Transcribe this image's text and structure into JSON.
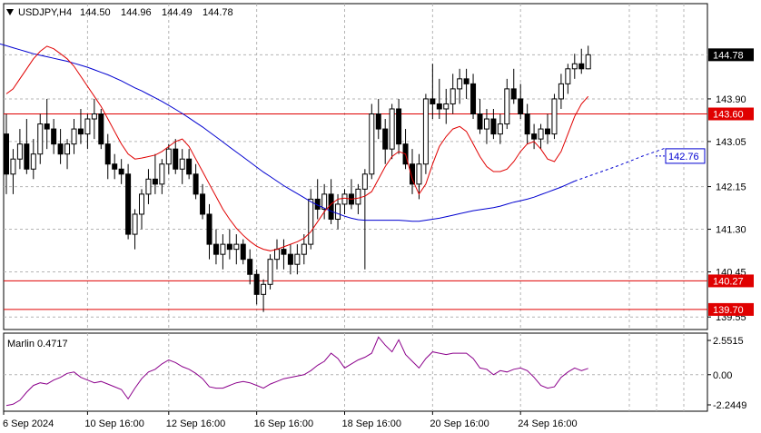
{
  "chart_data": {
    "type": "candlestick",
    "header": {
      "symbol": "USDJPY,H4",
      "open": "144.50",
      "high": "144.96",
      "low": "144.49",
      "close": "144.78"
    },
    "price_axis": {
      "range": [
        139.3,
        145.8
      ],
      "ticks": [
        "143.90",
        "143.05",
        "142.15",
        "141.30",
        "140.45",
        "139.55"
      ]
    },
    "price_labels": [
      {
        "name": "current-price",
        "text": "144.78",
        "value": 144.78,
        "style": "black"
      },
      {
        "name": "level-143-60",
        "text": "143.60",
        "value": 143.6,
        "style": "red"
      },
      {
        "name": "ma-projection",
        "text": "142.76",
        "value": 142.76,
        "style": "blue-outline"
      },
      {
        "name": "level-140-27",
        "text": "140.27",
        "value": 140.27,
        "style": "red"
      },
      {
        "name": "level-139-70",
        "text": "139.70",
        "value": 139.7,
        "style": "red"
      }
    ],
    "horizontal_levels": [
      143.6,
      140.27,
      139.7
    ],
    "x_labels": [
      "6 Sep 2024",
      "10 Sep 16:00",
      "12 Sep 16:00",
      "16 Sep 16:00",
      "18 Sep 16:00",
      "20 Sep 16:00",
      "24 Sep 16:00"
    ],
    "candles": [
      [
        143.2,
        143.6,
        142.0,
        142.4
      ],
      [
        142.4,
        142.9,
        142.0,
        142.7
      ],
      [
        142.7,
        143.3,
        142.5,
        143.0
      ],
      [
        143.0,
        143.5,
        142.4,
        142.5
      ],
      [
        142.5,
        143.1,
        142.3,
        142.8
      ],
      [
        142.8,
        143.6,
        142.6,
        143.4
      ],
      [
        143.4,
        143.9,
        142.9,
        143.3
      ],
      [
        143.3,
        143.5,
        142.8,
        143.0
      ],
      [
        143.0,
        143.3,
        142.6,
        142.8
      ],
      [
        142.8,
        143.1,
        142.5,
        143.0
      ],
      [
        143.0,
        143.5,
        142.8,
        143.3
      ],
      [
        143.3,
        143.7,
        143.0,
        143.2
      ],
      [
        143.2,
        143.6,
        142.9,
        143.5
      ],
      [
        143.5,
        143.9,
        143.1,
        143.6
      ],
      [
        143.6,
        143.7,
        142.9,
        143.0
      ],
      [
        143.0,
        143.2,
        142.3,
        142.6
      ],
      [
        142.6,
        142.8,
        142.3,
        142.5
      ],
      [
        142.5,
        142.7,
        142.2,
        142.4
      ],
      [
        142.4,
        142.6,
        141.1,
        141.2
      ],
      [
        141.2,
        141.7,
        140.9,
        141.6
      ],
      [
        141.6,
        142.1,
        141.3,
        142.0
      ],
      [
        142.0,
        142.5,
        141.8,
        142.3
      ],
      [
        142.3,
        142.8,
        142.0,
        142.2
      ],
      [
        142.2,
        142.7,
        142.0,
        142.6
      ],
      [
        142.6,
        143.0,
        142.4,
        142.9
      ],
      [
        142.9,
        143.1,
        142.4,
        142.5
      ],
      [
        142.5,
        142.9,
        142.2,
        142.7
      ],
      [
        142.7,
        142.9,
        142.3,
        142.4
      ],
      [
        142.4,
        142.6,
        141.9,
        142.0
      ],
      [
        142.0,
        142.2,
        141.5,
        141.6
      ],
      [
        141.6,
        141.8,
        140.7,
        141.0
      ],
      [
        141.0,
        141.3,
        140.6,
        140.8
      ],
      [
        140.8,
        141.2,
        140.5,
        141.0
      ],
      [
        141.0,
        141.3,
        140.7,
        140.9
      ],
      [
        140.9,
        141.2,
        140.6,
        141.0
      ],
      [
        141.0,
        141.1,
        140.6,
        140.7
      ],
      [
        140.7,
        140.9,
        140.2,
        140.4
      ],
      [
        140.4,
        140.5,
        139.8,
        140.0
      ],
      [
        140.0,
        140.3,
        139.65,
        140.2
      ],
      [
        140.2,
        140.8,
        140.1,
        140.7
      ],
      [
        140.7,
        141.1,
        140.5,
        140.9
      ],
      [
        140.9,
        141.1,
        140.5,
        140.8
      ],
      [
        140.8,
        141.0,
        140.4,
        140.6
      ],
      [
        140.6,
        141.0,
        140.4,
        140.8
      ],
      [
        140.8,
        141.2,
        140.6,
        141.0
      ],
      [
        141.0,
        142.1,
        140.9,
        141.9
      ],
      [
        141.9,
        142.3,
        141.5,
        141.7
      ],
      [
        141.7,
        142.2,
        141.5,
        142.0
      ],
      [
        142.0,
        142.3,
        141.4,
        141.5
      ],
      [
        141.5,
        142.0,
        141.3,
        141.8
      ],
      [
        141.8,
        142.1,
        141.6,
        142.0
      ],
      [
        142.0,
        142.3,
        141.7,
        141.8
      ],
      [
        141.8,
        142.2,
        141.6,
        142.1
      ],
      [
        142.1,
        142.5,
        140.5,
        142.4
      ],
      [
        142.4,
        143.8,
        142.3,
        143.6
      ],
      [
        143.6,
        143.9,
        143.1,
        143.3
      ],
      [
        143.3,
        143.5,
        142.6,
        142.9
      ],
      [
        142.9,
        143.8,
        142.7,
        143.7
      ],
      [
        143.7,
        143.9,
        142.8,
        143.0
      ],
      [
        143.0,
        143.3,
        142.5,
        142.6
      ],
      [
        142.6,
        142.9,
        142.0,
        142.2
      ],
      [
        142.2,
        142.8,
        141.9,
        142.6
      ],
      [
        142.6,
        144.0,
        142.4,
        143.9
      ],
      [
        143.9,
        144.6,
        143.5,
        143.8
      ],
      [
        143.8,
        144.3,
        143.5,
        143.7
      ],
      [
        143.7,
        144.1,
        143.4,
        143.8
      ],
      [
        143.8,
        144.4,
        143.6,
        144.1
      ],
      [
        144.1,
        144.5,
        143.8,
        144.3
      ],
      [
        144.3,
        144.5,
        143.9,
        144.2
      ],
      [
        144.2,
        144.4,
        143.5,
        143.6
      ],
      [
        143.6,
        143.9,
        143.2,
        143.3
      ],
      [
        143.3,
        143.7,
        143.0,
        143.5
      ],
      [
        143.5,
        143.7,
        143.1,
        143.2
      ],
      [
        143.2,
        143.6,
        143.0,
        143.4
      ],
      [
        143.4,
        144.3,
        143.3,
        144.1
      ],
      [
        144.1,
        144.5,
        143.8,
        143.9
      ],
      [
        143.9,
        144.2,
        143.5,
        143.6
      ],
      [
        143.6,
        143.8,
        143.0,
        143.2
      ],
      [
        143.2,
        143.4,
        142.9,
        143.1
      ],
      [
        143.1,
        143.4,
        142.9,
        143.3
      ],
      [
        143.3,
        143.6,
        143.0,
        143.2
      ],
      [
        143.2,
        144.0,
        143.1,
        143.9
      ],
      [
        143.9,
        144.4,
        143.7,
        144.2
      ],
      [
        144.2,
        144.6,
        144.0,
        144.5
      ],
      [
        144.5,
        144.8,
        144.3,
        144.6
      ],
      [
        144.6,
        144.9,
        144.4,
        144.5
      ],
      [
        144.5,
        144.96,
        144.49,
        144.78
      ]
    ],
    "blue_ma": [
      145.0,
      144.96,
      144.92,
      144.88,
      144.84,
      144.8,
      144.77,
      144.74,
      144.71,
      144.68,
      144.65,
      144.61,
      144.57,
      144.53,
      144.48,
      144.43,
      144.38,
      144.32,
      144.26,
      144.19,
      144.12,
      144.06,
      143.99,
      143.92,
      143.85,
      143.77,
      143.69,
      143.61,
      143.52,
      143.43,
      143.34,
      143.24,
      143.14,
      143.04,
      142.94,
      142.84,
      142.74,
      142.64,
      142.54,
      142.44,
      142.35,
      142.26,
      142.17,
      142.09,
      142.01,
      141.93,
      141.85,
      141.78,
      141.72,
      141.66,
      141.61,
      141.56,
      141.52,
      141.49,
      141.48,
      141.48,
      141.48,
      141.48,
      141.48,
      141.48,
      141.47,
      141.46,
      141.46,
      141.48,
      141.5,
      141.52,
      141.55,
      141.58,
      141.61,
      141.64,
      141.67,
      141.69,
      141.71,
      141.73,
      141.76,
      141.8,
      141.84,
      141.87,
      141.9,
      141.94,
      141.99,
      142.04,
      142.09,
      142.14,
      142.2,
      142.26
    ],
    "blue_ma_projection": [
      142.26,
      142.42,
      142.58,
      142.76,
      142.92
    ],
    "red_ma": [
      144.0,
      144.1,
      144.3,
      144.5,
      144.7,
      144.85,
      144.95,
      144.9,
      144.8,
      144.7,
      144.55,
      144.35,
      144.15,
      143.95,
      143.75,
      143.5,
      143.25,
      143.0,
      142.8,
      142.7,
      142.72,
      142.75,
      142.78,
      142.85,
      142.95,
      143.05,
      143.1,
      142.95,
      142.7,
      142.45,
      142.2,
      141.95,
      141.7,
      141.5,
      141.32,
      141.18,
      141.06,
      140.96,
      140.9,
      140.87,
      140.9,
      140.95,
      141.0,
      141.05,
      141.12,
      141.25,
      141.45,
      141.65,
      141.8,
      141.9,
      141.92,
      141.9,
      141.92,
      141.96,
      142.05,
      142.3,
      142.55,
      142.75,
      142.85,
      142.8,
      142.3,
      142.0,
      142.2,
      142.6,
      142.95,
      143.15,
      143.3,
      143.35,
      143.25,
      143.0,
      142.75,
      142.55,
      142.45,
      142.45,
      142.5,
      142.65,
      142.85,
      143.0,
      143.05,
      142.9,
      142.7,
      142.65,
      142.85,
      143.2,
      143.55,
      143.8,
      143.95
    ],
    "indicator": {
      "name": "Marlin",
      "label": "Marlin 0.4717",
      "ticks": [
        "2.5515",
        "0.00",
        "-2.2449"
      ],
      "range": [
        -2.2449,
        2.5515
      ],
      "values": [
        -2.3,
        -2.2,
        -1.9,
        -1.3,
        -0.8,
        -0.6,
        -0.7,
        -0.4,
        -0.2,
        0.1,
        0.2,
        -0.2,
        -0.4,
        -0.6,
        -0.5,
        -0.7,
        -0.9,
        -1.1,
        -1.8,
        -1.0,
        -0.3,
        0.2,
        0.4,
        0.8,
        1.1,
        0.9,
        0.6,
        0.4,
        0.1,
        -0.3,
        -0.9,
        -1.0,
        -1.0,
        -0.8,
        -0.6,
        -0.5,
        -0.6,
        -0.8,
        -1.0,
        -0.7,
        -0.5,
        -0.3,
        -0.2,
        -0.1,
        0.0,
        0.3,
        0.7,
        1.0,
        1.6,
        1.2,
        0.5,
        0.8,
        1.1,
        1.3,
        1.6,
        2.8,
        2.2,
        1.7,
        2.6,
        1.5,
        1.0,
        0.5,
        1.2,
        1.7,
        1.6,
        1.5,
        1.6,
        1.6,
        1.6,
        1.2,
        0.5,
        0.4,
        0.0,
        0.3,
        0.2,
        0.4,
        0.5,
        0.3,
        -0.2,
        -0.8,
        -1.0,
        -0.9,
        -0.2,
        0.2,
        0.5,
        0.3,
        0.47
      ]
    }
  }
}
